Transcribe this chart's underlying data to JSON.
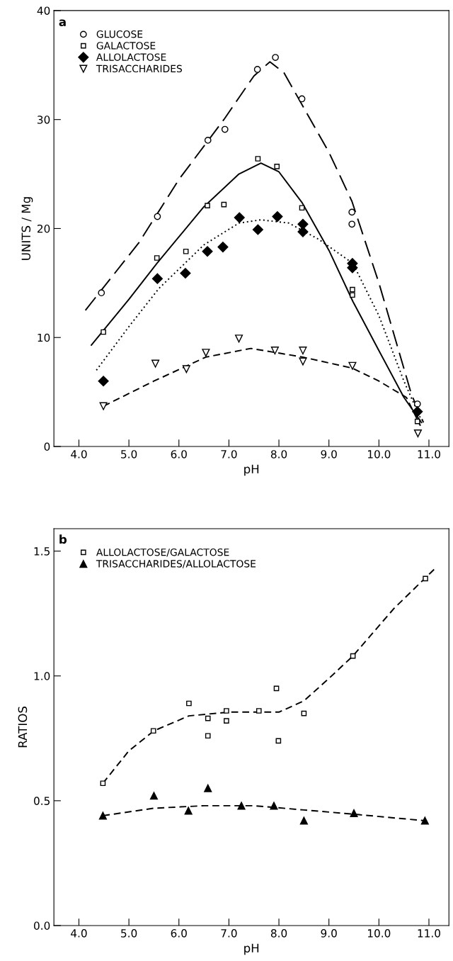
{
  "chart_data": [
    {
      "type": "scatter",
      "xlabel": "pH",
      "ylabel": "UNITS / Mg",
      "xlim": [
        3.5,
        11.4
      ],
      "ylim": [
        0,
        40
      ],
      "xticks": [
        {
          "value": 4,
          "label": "4.0"
        },
        {
          "value": 5,
          "label": "5.0"
        },
        {
          "value": 6,
          "label": "6.0"
        },
        {
          "value": 7,
          "label": "7.0"
        },
        {
          "value": 8,
          "label": "8.0"
        },
        {
          "value": 9,
          "label": "9.0"
        },
        {
          "value": 10,
          "label": "10.0"
        },
        {
          "value": 11,
          "label": "11.0"
        }
      ],
      "yticks": [
        0,
        10,
        20,
        30,
        40
      ],
      "grid": false,
      "legend": "top left",
      "annotations": [
        "a"
      ],
      "series": [
        {
          "name": "GLUCOSE",
          "color": "#000000",
          "marker": "circle",
          "x": [
            4.45,
            5.57,
            6.58,
            6.92,
            7.57,
            7.93,
            8.46,
            9.46,
            9.46,
            10.77
          ],
          "values": [
            14.1,
            21.1,
            28.1,
            29.1,
            34.6,
            35.7,
            31.9,
            21.5,
            20.4,
            3.9
          ]
        },
        {
          "name": "GALACTOSE",
          "color": "#000000",
          "marker": "square",
          "x": [
            4.49,
            5.56,
            6.14,
            6.57,
            6.9,
            7.58,
            7.96,
            8.46,
            9.47,
            9.47,
            10.77
          ],
          "values": [
            10.5,
            17.3,
            17.9,
            22.1,
            22.2,
            26.4,
            25.7,
            21.9,
            14.4,
            13.9,
            2.3
          ]
        },
        {
          "name": "ALLOLACTOSE",
          "color": "#000000",
          "marker": "diamond",
          "x": [
            4.49,
            5.57,
            6.13,
            6.57,
            6.88,
            7.21,
            7.58,
            7.97,
            8.48,
            8.48,
            9.47,
            9.47,
            10.77
          ],
          "values": [
            6.0,
            15.4,
            15.9,
            17.9,
            18.3,
            21.0,
            19.9,
            21.1,
            20.4,
            19.7,
            16.8,
            16.4,
            3.2
          ]
        },
        {
          "name": "TRISACCHARIDES",
          "color": "#000000",
          "marker": "triangle_down",
          "x": [
            4.49,
            5.53,
            6.15,
            6.54,
            7.2,
            7.92,
            8.48,
            8.48,
            9.47,
            10.78
          ],
          "values": [
            3.7,
            7.6,
            7.1,
            8.6,
            9.9,
            8.8,
            8.8,
            7.8,
            7.4,
            1.2
          ]
        },
        {
          "type": "line",
          "color": "#000000",
          "line_style": "longdash",
          "x": [
            4.13,
            5.2,
            6.0,
            6.9,
            7.5,
            7.82,
            8.1,
            8.47,
            9.0,
            9.46,
            10.0,
            10.65,
            10.89
          ],
          "values": [
            12.5,
            18.7,
            24.5,
            30.0,
            34.0,
            35.3,
            34.3,
            31.3,
            27.0,
            22.5,
            15.0,
            4.8,
            2.2
          ]
        },
        {
          "type": "line",
          "color": "#000000",
          "line_style": "solid",
          "x": [
            4.25,
            5.0,
            5.56,
            6.5,
            7.2,
            7.64,
            8.0,
            8.46,
            9.0,
            9.48,
            10.0,
            10.5,
            10.85
          ],
          "values": [
            9.3,
            13.5,
            16.8,
            22.0,
            25.0,
            26.0,
            25.2,
            22.4,
            18.0,
            13.3,
            8.8,
            4.5,
            2.2
          ]
        },
        {
          "type": "line",
          "color": "#000000",
          "line_style": "dotted",
          "x": [
            4.35,
            5.0,
            5.6,
            6.5,
            7.2,
            7.64,
            8.2,
            8.8,
            9.48,
            10.0,
            10.5,
            10.85
          ],
          "values": [
            7.0,
            11.0,
            14.5,
            18.5,
            20.5,
            20.8,
            20.5,
            19.0,
            16.8,
            12.0,
            6.0,
            2.4
          ]
        },
        {
          "type": "line",
          "color": "#000000",
          "line_style": "dashed",
          "x": [
            4.49,
            5.5,
            6.54,
            7.44,
            8.48,
            9.46,
            10.0,
            10.55,
            10.83
          ],
          "values": [
            3.7,
            6.0,
            8.2,
            9.0,
            8.2,
            7.2,
            6.0,
            4.5,
            1.9
          ]
        }
      ]
    },
    {
      "type": "scatter",
      "xlabel": "pH",
      "ylabel": "RATIOS",
      "xlim": [
        3.5,
        11.4
      ],
      "ylim": [
        0,
        1.59
      ],
      "xticks": [
        {
          "value": 4,
          "label": "4.0"
        },
        {
          "value": 5,
          "label": "5.0"
        },
        {
          "value": 6,
          "label": "6.0"
        },
        {
          "value": 7,
          "label": "7.0"
        },
        {
          "value": 8,
          "label": "8.0"
        },
        {
          "value": 9,
          "label": "9.0"
        },
        {
          "value": 10,
          "label": "10.0"
        },
        {
          "value": 11,
          "label": "11.0"
        }
      ],
      "yticks": [
        {
          "value": 0,
          "label": "0.0"
        },
        {
          "value": 0.5,
          "label": "0.5"
        },
        {
          "value": 1,
          "label": "1.0"
        },
        {
          "value": 1.5,
          "label": "1.5"
        }
      ],
      "grid": false,
      "legend": "top left",
      "annotations": [
        "b"
      ],
      "series": [
        {
          "name": "ALLOLACTOSE/GALACTOSE",
          "color": "#000000",
          "marker": "square",
          "x": [
            4.48,
            5.49,
            6.2,
            6.58,
            6.58,
            6.95,
            6.95,
            7.6,
            7.95,
            7.99,
            8.5,
            9.48,
            10.93
          ],
          "values": [
            0.57,
            0.78,
            0.89,
            0.83,
            0.76,
            0.86,
            0.82,
            0.86,
            0.95,
            0.74,
            0.85,
            1.08,
            1.39
          ]
        },
        {
          "name": "TRISACCHARIDES/ALLOLACTOSE",
          "color": "#000000",
          "marker": "triangle",
          "x": [
            4.48,
            5.5,
            6.19,
            6.58,
            7.25,
            7.9,
            8.5,
            9.5,
            10.92
          ],
          "values": [
            0.44,
            0.52,
            0.46,
            0.55,
            0.48,
            0.48,
            0.42,
            0.45,
            0.42
          ]
        },
        {
          "type": "line",
          "color": "#000000",
          "line_style": "dashed",
          "x": [
            4.48,
            5.0,
            5.5,
            6.2,
            7.0,
            8.0,
            8.5,
            9.0,
            9.48,
            10.3,
            11.12
          ],
          "values": [
            0.57,
            0.7,
            0.78,
            0.84,
            0.855,
            0.855,
            0.9,
            0.99,
            1.08,
            1.27,
            1.43
          ]
        },
        {
          "type": "line",
          "color": "#000000",
          "line_style": "dashed",
          "x": [
            4.48,
            5.5,
            6.5,
            7.5,
            8.5,
            9.5,
            10.92
          ],
          "values": [
            0.44,
            0.47,
            0.48,
            0.48,
            0.463,
            0.446,
            0.42
          ]
        }
      ]
    }
  ]
}
